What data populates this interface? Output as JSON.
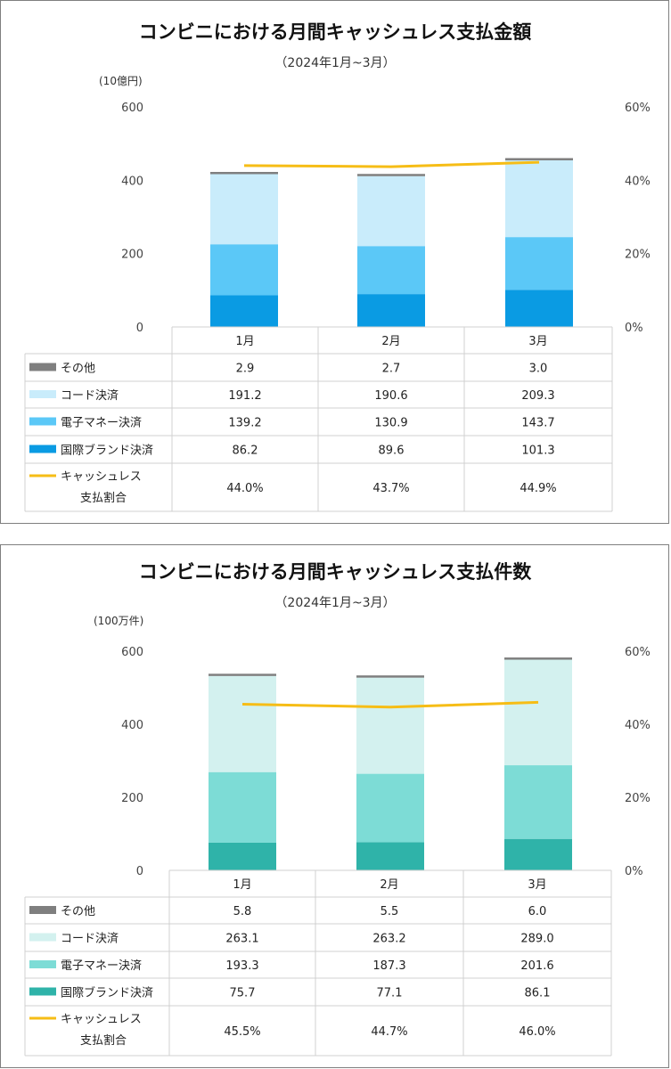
{
  "charts": [
    {
      "title": "コンビニにおける月間キャッシュレス支払金額",
      "subtitle": "（2024年1月~3月）",
      "unit_left": "(10億円)",
      "left_ticks": [
        "600",
        "400",
        "200",
        "0"
      ],
      "right_ticks": [
        "60%",
        "40%",
        "20%",
        "0%"
      ],
      "categories": [
        "1月",
        "2月",
        "3月"
      ],
      "series": [
        {
          "name": "その他",
          "color": "#7f7f7f",
          "values": [
            "2.9",
            "2.7",
            "3.0"
          ]
        },
        {
          "name": "コード決済",
          "color": "#c9ecfb",
          "values": [
            "191.2",
            "190.6",
            "209.3"
          ]
        },
        {
          "name": "電子マネー決済",
          "color": "#5bc8f7",
          "values": [
            "139.2",
            "130.9",
            "143.7"
          ]
        },
        {
          "name": "国際ブランド決済",
          "color": "#0a9be3",
          "values": [
            "86.2",
            "89.6",
            "101.3"
          ]
        }
      ],
      "ratio": {
        "name_line1": "キャッシュレス",
        "name_line2": "支払割合",
        "color": "#f6bd16",
        "values": [
          "44.0%",
          "43.7%",
          "44.9%"
        ]
      }
    },
    {
      "title": "コンビニにおける月間キャッシュレス支払件数",
      "subtitle": "（2024年1月~3月）",
      "unit_left": "(100万件)",
      "left_ticks": [
        "600",
        "400",
        "200",
        "0"
      ],
      "right_ticks": [
        "60%",
        "40%",
        "20%",
        "0%"
      ],
      "categories": [
        "1月",
        "2月",
        "3月"
      ],
      "series": [
        {
          "name": "その他",
          "color": "#7f7f7f",
          "values": [
            "5.8",
            "5.5",
            "6.0"
          ]
        },
        {
          "name": "コード決済",
          "color": "#d3f1ef",
          "values": [
            "263.1",
            "263.2",
            "289.0"
          ]
        },
        {
          "name": "電子マネー決済",
          "color": "#7ddcd6",
          "values": [
            "193.3",
            "187.3",
            "201.6"
          ]
        },
        {
          "name": "国際ブランド決済",
          "color": "#2fb3a9",
          "values": [
            "75.7",
            "77.1",
            "86.1"
          ]
        }
      ],
      "ratio": {
        "name_line1": "キャッシュレス",
        "name_line2": "支払割合",
        "color": "#f6bd16",
        "values": [
          "45.5%",
          "44.7%",
          "46.0%"
        ]
      }
    }
  ],
  "chart_data": [
    {
      "type": "bar",
      "stacked": true,
      "title": "コンビニにおける月間キャッシュレス支払金額",
      "subtitle": "（2024年1月~3月）",
      "ylabel": "(10億円)",
      "categories": [
        "1月",
        "2月",
        "3月"
      ],
      "ylim": [
        0,
        600
      ],
      "y2lim": [
        0,
        60
      ],
      "series": [
        {
          "name": "国際ブランド決済",
          "values": [
            86.2,
            89.6,
            101.3
          ]
        },
        {
          "name": "電子マネー決済",
          "values": [
            139.2,
            130.9,
            143.7
          ]
        },
        {
          "name": "コード決済",
          "values": [
            191.2,
            190.6,
            209.3
          ]
        },
        {
          "name": "その他",
          "values": [
            2.9,
            2.7,
            3.0
          ]
        }
      ],
      "line_series": {
        "name": "キャッシュレス支払割合",
        "axis": "right",
        "values": [
          44.0,
          43.7,
          44.9
        ]
      },
      "grid": false,
      "legend": "table-below"
    },
    {
      "type": "bar",
      "stacked": true,
      "title": "コンビニにおける月間キャッシュレス支払件数",
      "subtitle": "（2024年1月~3月）",
      "ylabel": "(100万件)",
      "categories": [
        "1月",
        "2月",
        "3月"
      ],
      "ylim": [
        0,
        600
      ],
      "y2lim": [
        0,
        60
      ],
      "series": [
        {
          "name": "国際ブランド決済",
          "values": [
            75.7,
            77.1,
            86.1
          ]
        },
        {
          "name": "電子マネー決済",
          "values": [
            193.3,
            187.3,
            201.6
          ]
        },
        {
          "name": "コード決済",
          "values": [
            263.1,
            263.2,
            289.0
          ]
        },
        {
          "name": "その他",
          "values": [
            5.8,
            5.5,
            6.0
          ]
        }
      ],
      "line_series": {
        "name": "キャッシュレス支払割合",
        "axis": "right",
        "values": [
          45.5,
          44.7,
          46.0
        ]
      },
      "grid": false,
      "legend": "table-below"
    }
  ]
}
